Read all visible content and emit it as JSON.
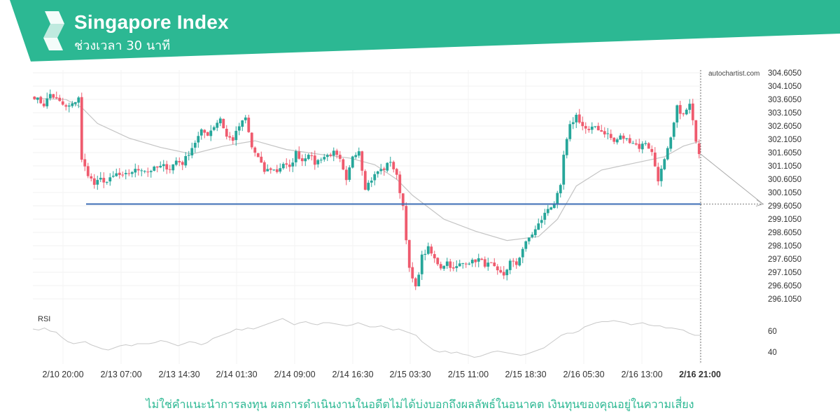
{
  "header": {
    "title": "Singapore Index",
    "subtitle": "ช่วงเวลา 30 นาที",
    "brand_color": "#2cb893"
  },
  "watermark": "autochartist.com",
  "disclaimer": "ไม่ใช่คำแนะนำการลงทุน ผลการดำเนินงานในอดีตไม่ได้บ่งบอกถึงผลลัพธ์ในอนาคต เงินทุนของคุณอยู่ในความเสี่ยง",
  "chart_data": [
    {
      "type": "candlestick",
      "title": "Singapore Index",
      "timeframe": "30 minutes",
      "x_tick_labels": [
        "2/10 20:00",
        "2/13 07:00",
        "2/13 14:30",
        "2/14 01:30",
        "2/14 09:00",
        "2/14 16:30",
        "2/15 03:30",
        "2/15 11:00",
        "2/15 18:30",
        "2/16 05:30",
        "2/16 13:00",
        "2/16 21:00"
      ],
      "y_tick_labels": [
        "304.6050",
        "304.1050",
        "303.6050",
        "303.1050",
        "302.6050",
        "302.1050",
        "301.6050",
        "301.1050",
        "300.6050",
        "300.1050",
        "299.6050",
        "299.1050",
        "298.6050",
        "298.1050",
        "297.6050",
        "297.1050",
        "296.6050",
        "296.1050"
      ],
      "ylim": [
        295.95,
        304.65
      ],
      "support_level": 299.67,
      "projection_target": 299.67,
      "grid": true,
      "colors": {
        "up": "#26a69a",
        "down": "#ef5b6e",
        "support": "#3d6eb5",
        "ma": "#c4c4c4"
      },
      "close_path": [
        [
          0,
          303.7
        ],
        [
          3,
          303.4
        ],
        [
          5,
          303.8
        ],
        [
          8,
          303.5
        ],
        [
          10,
          303.3
        ],
        [
          12,
          303.4
        ],
        [
          14,
          303.7
        ],
        [
          15,
          301.3
        ],
        [
          17,
          300.8
        ],
        [
          19,
          300.4
        ],
        [
          21,
          300.6
        ],
        [
          23,
          300.5
        ],
        [
          26,
          300.8
        ],
        [
          28,
          300.7
        ],
        [
          31,
          300.9
        ],
        [
          34,
          301.0
        ],
        [
          36,
          300.9
        ],
        [
          38,
          301.0
        ],
        [
          41,
          301.1
        ],
        [
          43,
          301.0
        ],
        [
          45,
          301.3
        ],
        [
          47,
          301.2
        ],
        [
          49,
          301.6
        ],
        [
          51,
          302.0
        ],
        [
          53,
          302.4
        ],
        [
          55,
          302.3
        ],
        [
          57,
          302.6
        ],
        [
          59,
          302.9
        ],
        [
          61,
          302.2
        ],
        [
          63,
          302.1
        ],
        [
          65,
          302.6
        ],
        [
          67,
          302.9
        ],
        [
          69,
          301.8
        ],
        [
          71,
          301.4
        ],
        [
          73,
          300.9
        ],
        [
          75,
          301.0
        ],
        [
          77,
          300.9
        ],
        [
          79,
          301.2
        ],
        [
          81,
          301.0
        ],
        [
          83,
          301.6
        ],
        [
          85,
          301.3
        ],
        [
          87,
          301.6
        ],
        [
          89,
          301.2
        ],
        [
          91,
          301.4
        ],
        [
          93,
          301.5
        ],
        [
          95,
          301.6
        ],
        [
          97,
          301.3
        ],
        [
          99,
          300.5
        ],
        [
          101,
          301.5
        ],
        [
          103,
          301.7
        ],
        [
          105,
          300.3
        ],
        [
          107,
          300.6
        ],
        [
          109,
          300.9
        ],
        [
          111,
          301.0
        ],
        [
          113,
          301.3
        ],
        [
          115,
          300.7
        ],
        [
          117,
          299.6
        ],
        [
          119,
          297.2
        ],
        [
          121,
          296.5
        ],
        [
          123,
          297.7
        ],
        [
          125,
          298.0
        ],
        [
          127,
          297.6
        ],
        [
          129,
          297.3
        ],
        [
          131,
          297.5
        ],
        [
          133,
          297.2
        ],
        [
          135,
          297.4
        ],
        [
          137,
          297.5
        ],
        [
          139,
          297.5
        ],
        [
          141,
          297.6
        ],
        [
          143,
          297.4
        ],
        [
          145,
          297.4
        ],
        [
          147,
          297.1
        ],
        [
          149,
          297.0
        ],
        [
          151,
          297.5
        ],
        [
          153,
          297.4
        ],
        [
          155,
          298.0
        ],
        [
          157,
          298.4
        ],
        [
          159,
          298.7
        ],
        [
          161,
          299.1
        ],
        [
          163,
          299.5
        ],
        [
          165,
          299.7
        ],
        [
          167,
          300.3
        ],
        [
          168,
          301.5
        ],
        [
          170,
          302.6
        ],
        [
          172,
          303.0
        ],
        [
          174,
          302.6
        ],
        [
          176,
          302.4
        ],
        [
          178,
          302.6
        ],
        [
          180,
          302.4
        ],
        [
          182,
          302.3
        ],
        [
          184,
          302.0
        ],
        [
          186,
          302.2
        ],
        [
          188,
          302.1
        ],
        [
          190,
          302.0
        ],
        [
          192,
          301.8
        ],
        [
          194,
          302.0
        ],
        [
          196,
          301.6
        ],
        [
          198,
          300.6
        ],
        [
          200,
          301.3
        ],
        [
          202,
          302.1
        ],
        [
          204,
          303.3
        ],
        [
          206,
          303.0
        ],
        [
          208,
          303.4
        ],
        [
          210,
          302.1
        ],
        [
          211,
          301.6
        ]
      ],
      "ma_path": [
        [
          0,
          303.65
        ],
        [
          10,
          303.6
        ],
        [
          15,
          303.3
        ],
        [
          20,
          302.7
        ],
        [
          30,
          302.15
        ],
        [
          40,
          301.8
        ],
        [
          50,
          301.55
        ],
        [
          60,
          301.85
        ],
        [
          70,
          302.05
        ],
        [
          80,
          301.72
        ],
        [
          90,
          301.55
        ],
        [
          100,
          301.4
        ],
        [
          108,
          301.15
        ],
        [
          115,
          300.6
        ],
        [
          120,
          300.0
        ],
        [
          130,
          299.1
        ],
        [
          140,
          298.65
        ],
        [
          150,
          298.3
        ],
        [
          160,
          298.45
        ],
        [
          166,
          299.1
        ],
        [
          172,
          300.35
        ],
        [
          180,
          300.95
        ],
        [
          190,
          301.2
        ],
        [
          200,
          301.45
        ],
        [
          206,
          301.85
        ],
        [
          211,
          302.02
        ]
      ],
      "price_range_high": 304.3,
      "price_range_low": 296.1,
      "last_candle_range": [
        301.95,
        301.55
      ]
    },
    {
      "type": "line",
      "title": "RSI",
      "y_tick_labels": [
        "60",
        "40"
      ],
      "ylim": [
        30,
        80
      ],
      "values": [
        62,
        61,
        63,
        60,
        59,
        54,
        50,
        48,
        49,
        50,
        47,
        45,
        43,
        42,
        44,
        46,
        47,
        46,
        48,
        48,
        48,
        49,
        51,
        50,
        48,
        46,
        48,
        50,
        49,
        47,
        49,
        53,
        55,
        57,
        59,
        62,
        61,
        63,
        62,
        64,
        66,
        68,
        70,
        72,
        69,
        66,
        68,
        69,
        67,
        66,
        68,
        68,
        67,
        66,
        65,
        66,
        68,
        66,
        64,
        64,
        65,
        63,
        61,
        62,
        60,
        58,
        56,
        50,
        46,
        42,
        40,
        41,
        39,
        40,
        38,
        37,
        35,
        36,
        38,
        40,
        41,
        40,
        39,
        38,
        37,
        38,
        40,
        42,
        44,
        48,
        52,
        56,
        58,
        58,
        60,
        64,
        66,
        68,
        69,
        69,
        70,
        69,
        68,
        66,
        67,
        68,
        66,
        65,
        65,
        63,
        63,
        62,
        61,
        58,
        56,
        56
      ]
    }
  ]
}
